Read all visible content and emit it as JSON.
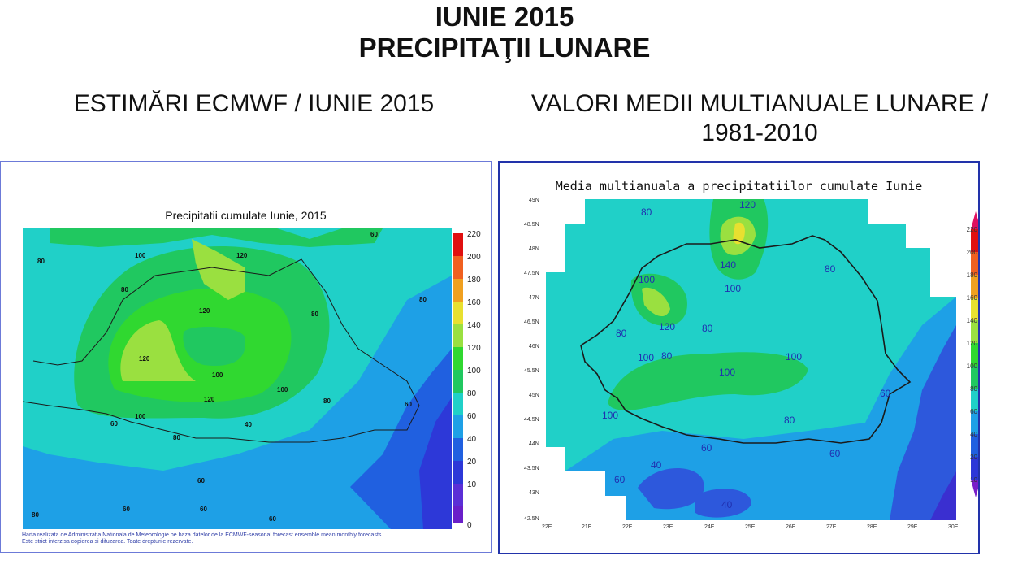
{
  "title_line1": "IUNIE 2015",
  "title_line2": "PRECIPITAŢII LUNARE",
  "left": {
    "heading": "ESTIMĂRI ECMWF / IUNIE 2015",
    "map_title": "Precipitatii cumulate Iunie, 2015",
    "footnote_line1": "Harta realizata de Administratia Nationala de Meteorologie pe baza datelor de la ECMWF-seasonal forecast ensemble mean monthly forecasts.",
    "footnote_line2": "Este strict interzisa copierea si difuzarea. Toate drepturile rezervate.",
    "colorbar_labels": [
      "220",
      "200",
      "180",
      "160",
      "140",
      "120",
      "100",
      "80",
      "60",
      "40",
      "20",
      "10",
      "0"
    ],
    "contour_labels": [
      "100",
      "120",
      "80",
      "60",
      "80",
      "120",
      "80",
      "120",
      "100",
      "120",
      "100",
      "80",
      "100",
      "80",
      "60",
      "40",
      "80",
      "60",
      "80",
      "60",
      "60",
      "60",
      "60"
    ]
  },
  "right": {
    "heading": "VALORI MEDII MULTIANUALE LUNARE / 1981-2010",
    "map_title": "Media multianuala a precipitatiilor cumulate Iunie",
    "colorbar_labels": [
      "220",
      "200",
      "180",
      "160",
      "140",
      "120",
      "100",
      "80",
      "60",
      "40",
      "20",
      "10"
    ],
    "lat_labels": [
      "49N",
      "48.5N",
      "48N",
      "47.5N",
      "47N",
      "46.5N",
      "46N",
      "45.5N",
      "45N",
      "44.5N",
      "44N",
      "43.5N",
      "43N",
      "42.5N"
    ],
    "lon_labels": [
      "22E",
      "21E",
      "22E",
      "23E",
      "24E",
      "25E",
      "26E",
      "27E",
      "28E",
      "29E",
      "30E"
    ],
    "contour_labels": [
      "120",
      "80",
      "140",
      "100",
      "100",
      "80",
      "80",
      "120",
      "80",
      "100",
      "80",
      "100",
      "100",
      "60",
      "100",
      "80",
      "60",
      "40",
      "60",
      "60",
      "40"
    ]
  },
  "colors": {
    "c0": "#6a1fc9",
    "c10": "#5b2fd6",
    "c20": "#2d38d8",
    "c40": "#2060e0",
    "c60": "#1ea0e6",
    "c80": "#20d0c8",
    "c100": "#20c860",
    "c120": "#30d830",
    "c140": "#9ae040",
    "c160": "#e8e030",
    "c180": "#f0a020",
    "c200": "#f06020",
    "c220": "#e01010"
  }
}
